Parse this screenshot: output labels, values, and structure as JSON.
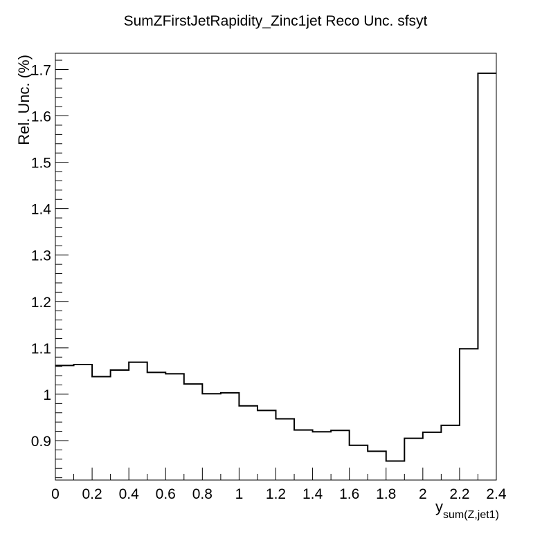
{
  "chart_data": {
    "type": "step",
    "title": "SumZFirstJetRapidity_Zinc1jet Reco Unc. sfsyt",
    "xlabel": "y",
    "xlabel_subscript": "sum(Z,jet1)",
    "ylabel": "Rel. Unc. (%)",
    "xlim": [
      0,
      2.4
    ],
    "ylim": [
      0.815,
      1.735
    ],
    "grid": false,
    "x_ticks": [
      "0",
      "0.2",
      "0.4",
      "0.6",
      "0.8",
      "1",
      "1.2",
      "1.4",
      "1.6",
      "1.8",
      "2",
      "2.2",
      "2.4"
    ],
    "y_ticks": [
      "0.9",
      "1",
      "1.1",
      "1.2",
      "1.3",
      "1.4",
      "1.5",
      "1.6",
      "1.7"
    ],
    "bin_edges": [
      0,
      0.1,
      0.2,
      0.3,
      0.4,
      0.5,
      0.6,
      0.7,
      0.8,
      0.9,
      1.0,
      1.1,
      1.2,
      1.3,
      1.4,
      1.5,
      1.6,
      1.7,
      1.8,
      1.9,
      2.0,
      2.1,
      2.2,
      2.3,
      2.4
    ],
    "values": [
      1.062,
      1.064,
      1.038,
      1.052,
      1.069,
      1.047,
      1.044,
      1.022,
      1.001,
      1.003,
      0.975,
      0.965,
      0.947,
      0.923,
      0.919,
      0.922,
      0.89,
      0.877,
      0.856,
      0.905,
      0.918,
      0.933,
      1.098,
      1.692
    ],
    "line_color": "#000000"
  }
}
